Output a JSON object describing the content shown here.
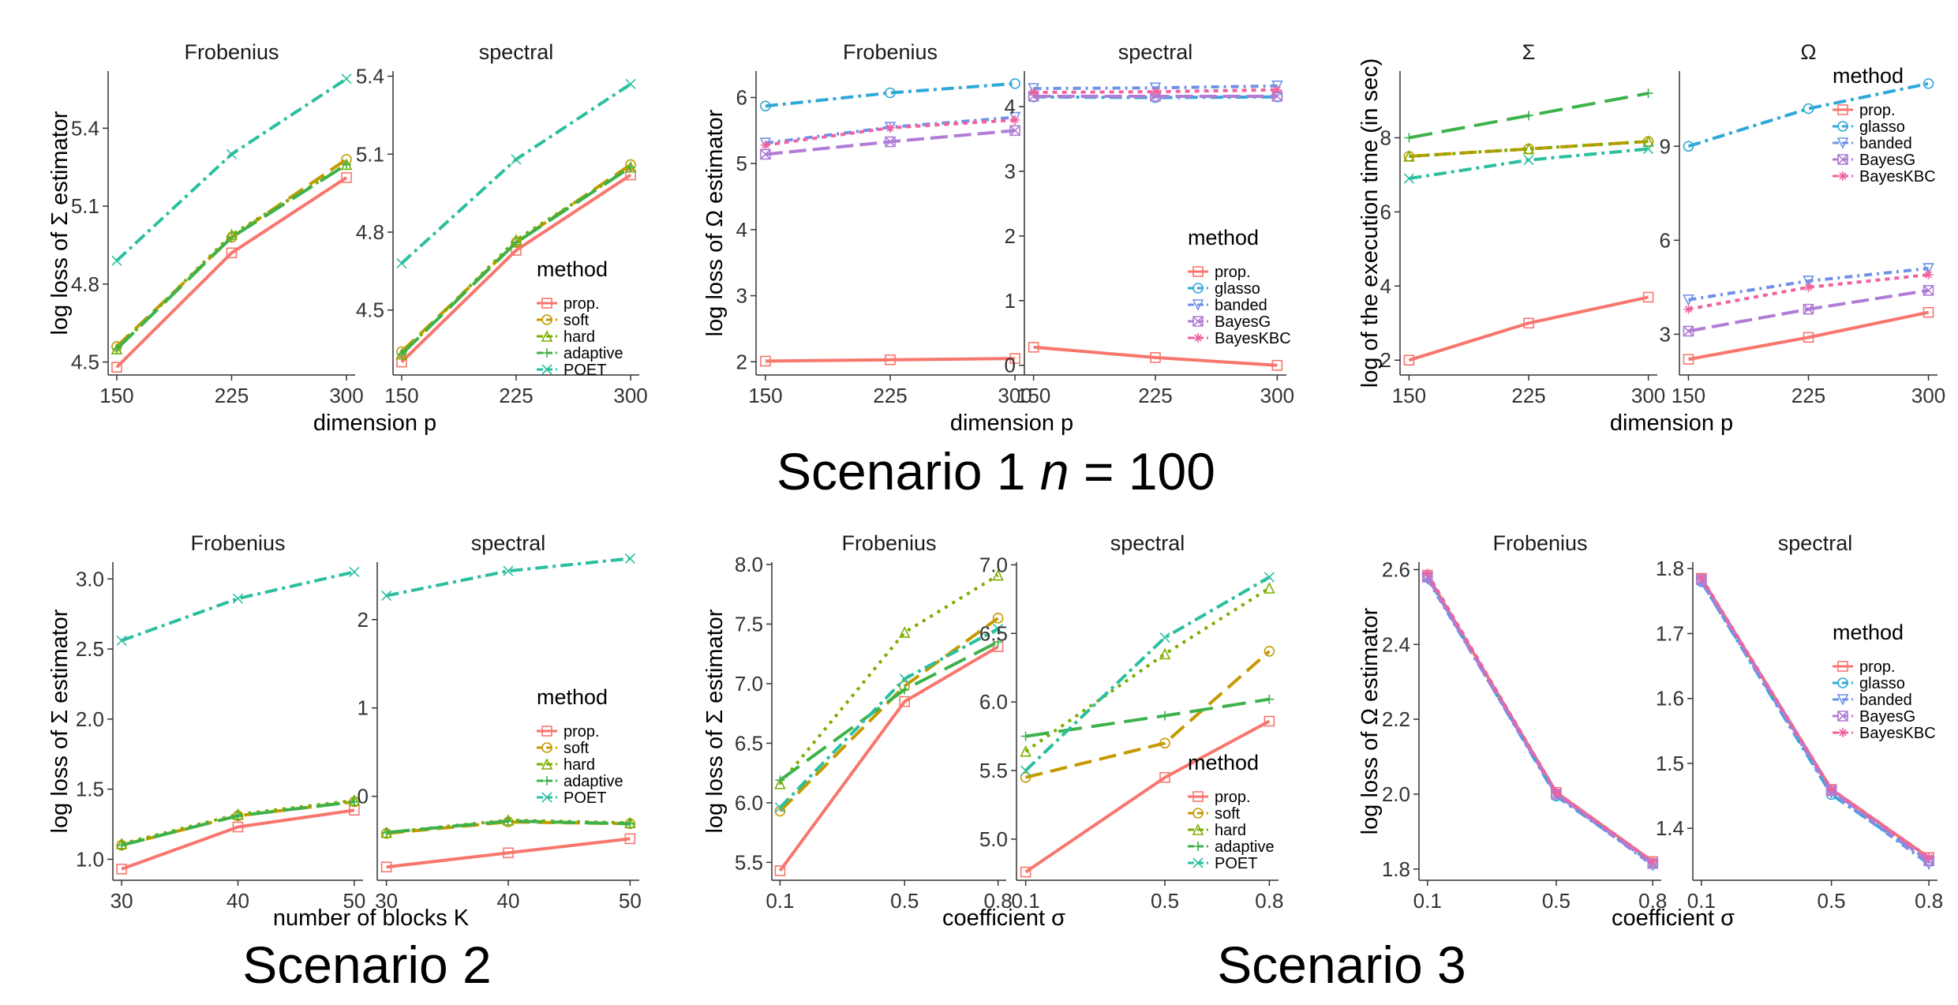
{
  "figure": {
    "scenario_titles": [
      "Scenario 1 ",
      "n",
      " = 100",
      "Scenario 2",
      "Scenario 3"
    ]
  },
  "colors": {
    "prop.": "#F8766D",
    "soft": "#C49A00",
    "hard": "#7CAE00",
    "adaptive": "#3DB24B",
    "POET": "#2BBF9F",
    "glasso": "#2FA8D8",
    "banded": "#6E92E8",
    "BayesG": "#B07CD6",
    "BayesKBC": "#F0629F"
  },
  "chart_data": [
    {
      "id": "s1_sigma",
      "type": "line",
      "group": "Scenario 1",
      "ylabel": "log loss of Σ estimator",
      "xlabel": "dimension p",
      "legend": {
        "title": "method",
        "placement": "right-bottom of spectral panel"
      },
      "panels": [
        {
          "strip": "Frobenius",
          "x": [
            150,
            225,
            300
          ],
          "xticks": [
            "150",
            "225",
            "300"
          ],
          "ylim": [
            4.45,
            5.62
          ],
          "yticks": [
            4.5,
            4.8,
            5.1,
            5.4
          ],
          "ytick_labels": [
            "4.5",
            "4.8",
            "5.1",
            "5.4"
          ],
          "series": [
            {
              "name": "prop.",
              "values": [
                4.48,
                4.92,
                5.21
              ]
            },
            {
              "name": "soft",
              "values": [
                4.56,
                4.98,
                5.28
              ]
            },
            {
              "name": "hard",
              "values": [
                4.55,
                4.99,
                5.26
              ]
            },
            {
              "name": "adaptive",
              "values": [
                4.55,
                4.98,
                5.26
              ]
            },
            {
              "name": "POET",
              "values": [
                4.89,
                5.3,
                5.59
              ]
            }
          ]
        },
        {
          "strip": "spectral",
          "x": [
            150,
            225,
            300
          ],
          "xticks": [
            "150",
            "225",
            "300"
          ],
          "ylim": [
            4.25,
            5.42
          ],
          "yticks": [
            4.5,
            4.8,
            5.1,
            5.4
          ],
          "ytick_labels": [
            "4.5",
            "4.8",
            "5.1",
            "5.4"
          ],
          "series": [
            {
              "name": "prop.",
              "values": [
                4.3,
                4.73,
                5.02
              ]
            },
            {
              "name": "soft",
              "values": [
                4.34,
                4.76,
                5.06
              ]
            },
            {
              "name": "hard",
              "values": [
                4.33,
                4.77,
                5.05
              ]
            },
            {
              "name": "adaptive",
              "values": [
                4.33,
                4.76,
                5.05
              ]
            },
            {
              "name": "POET",
              "values": [
                4.68,
                5.08,
                5.37
              ]
            }
          ]
        }
      ]
    },
    {
      "id": "s1_omega",
      "type": "line",
      "group": "Scenario 1",
      "ylabel": "log loss of Ω estimator",
      "xlabel": "dimension p",
      "legend": {
        "title": "method",
        "placement": "right-middle of spectral panel"
      },
      "panels": [
        {
          "strip": "Frobenius",
          "x": [
            150,
            225,
            300
          ],
          "xticks": [
            "150",
            "225",
            "300"
          ],
          "ylim": [
            1.8,
            6.4
          ],
          "yticks": [
            2,
            3,
            4,
            5,
            6
          ],
          "ytick_labels": [
            "2",
            "3",
            "4",
            "5",
            "6"
          ],
          "series": [
            {
              "name": "prop.",
              "values": [
                2.01,
                2.03,
                2.05
              ]
            },
            {
              "name": "glasso",
              "values": [
                5.87,
                6.07,
                6.21
              ]
            },
            {
              "name": "banded",
              "values": [
                5.31,
                5.55,
                5.7
              ]
            },
            {
              "name": "BayesG",
              "values": [
                5.14,
                5.33,
                5.5
              ]
            },
            {
              "name": "BayesKBC",
              "values": [
                5.28,
                5.54,
                5.66
              ]
            }
          ]
        },
        {
          "strip": "spectral",
          "x": [
            150,
            225,
            300
          ],
          "xticks": [
            "150",
            "225",
            "300"
          ],
          "ylim": [
            -0.15,
            4.55
          ],
          "yticks": [
            0,
            1,
            2,
            3,
            4
          ],
          "ytick_labels": [
            "0",
            "1",
            "2",
            "3",
            "4"
          ],
          "series": [
            {
              "name": "prop.",
              "values": [
                0.28,
                0.12,
                0.0
              ]
            },
            {
              "name": "glasso",
              "values": [
                4.15,
                4.14,
                4.15
              ]
            },
            {
              "name": "banded",
              "values": [
                4.28,
                4.29,
                4.32
              ]
            },
            {
              "name": "BayesG",
              "values": [
                4.16,
                4.16,
                4.16
              ]
            },
            {
              "name": "BayesKBC",
              "values": [
                4.22,
                4.23,
                4.26
              ]
            }
          ]
        }
      ]
    },
    {
      "id": "s1_time",
      "type": "line",
      "group": "Scenario 1",
      "ylabel": "log of the execution time (in sec)",
      "xlabel": "dimension p",
      "legend": {
        "title": "method",
        "placement": "top-right of Ω panel"
      },
      "panels": [
        {
          "strip": "Σ",
          "x": [
            150,
            225,
            300
          ],
          "xticks": [
            "150",
            "225",
            "300"
          ],
          "ylim": [
            1.6,
            9.8
          ],
          "yticks": [
            2,
            4,
            6,
            8
          ],
          "ytick_labels": [
            "2",
            "4",
            "6",
            "8"
          ],
          "series": [
            {
              "name": "prop.",
              "values": [
                2.0,
                3.0,
                3.7
              ]
            },
            {
              "name": "soft",
              "values": [
                7.5,
                7.7,
                7.9
              ]
            },
            {
              "name": "hard",
              "values": [
                7.5,
                7.7,
                7.9
              ]
            },
            {
              "name": "adaptive",
              "values": [
                8.0,
                8.6,
                9.2
              ]
            },
            {
              "name": "POET",
              "values": [
                6.9,
                7.4,
                7.7
              ]
            }
          ]
        },
        {
          "strip": "Ω",
          "x": [
            150,
            225,
            300
          ],
          "xticks": [
            "150",
            "225",
            "300"
          ],
          "ylim": [
            1.7,
            11.4
          ],
          "yticks": [
            3,
            6,
            9
          ],
          "ytick_labels": [
            "3",
            "6",
            "9"
          ],
          "series": [
            {
              "name": "prop.",
              "values": [
                2.2,
                2.9,
                3.7
              ]
            },
            {
              "name": "glasso",
              "values": [
                9.0,
                10.2,
                11.0
              ]
            },
            {
              "name": "banded",
              "values": [
                4.1,
                4.7,
                5.1
              ]
            },
            {
              "name": "BayesG",
              "values": [
                3.1,
                3.8,
                4.4
              ]
            },
            {
              "name": "BayesKBC",
              "values": [
                3.8,
                4.5,
                4.9
              ]
            }
          ]
        }
      ]
    },
    {
      "id": "s2_sigma",
      "type": "line",
      "group": "Scenario 2",
      "ylabel": "log loss of Σ estimator",
      "xlabel": "number of blocks K",
      "legend": {
        "title": "method",
        "placement": "right-middle of spectral panel"
      },
      "panels": [
        {
          "strip": "Frobenius",
          "x": [
            30,
            40,
            50
          ],
          "xticks": [
            "30",
            "40",
            "50"
          ],
          "ylim": [
            0.85,
            3.12
          ],
          "yticks": [
            1.0,
            1.5,
            2.0,
            2.5,
            3.0
          ],
          "ytick_labels": [
            "1.0",
            "1.5",
            "2.0",
            "2.5",
            "3.0"
          ],
          "series": [
            {
              "name": "prop.",
              "values": [
                0.93,
                1.23,
                1.35
              ]
            },
            {
              "name": "soft",
              "values": [
                1.1,
                1.31,
                1.41
              ]
            },
            {
              "name": "hard",
              "values": [
                1.11,
                1.32,
                1.42
              ]
            },
            {
              "name": "adaptive",
              "values": [
                1.1,
                1.31,
                1.41
              ]
            },
            {
              "name": "POET",
              "values": [
                2.56,
                2.86,
                3.05
              ]
            }
          ]
        },
        {
          "strip": "spectral",
          "x": [
            30,
            40,
            50
          ],
          "xticks": [
            "30",
            "40",
            "50"
          ],
          "ylim": [
            -0.95,
            2.65
          ],
          "yticks": [
            0,
            1,
            2
          ],
          "ytick_labels": [
            "0",
            "1",
            "2"
          ],
          "series": [
            {
              "name": "prop.",
              "values": [
                -0.8,
                -0.64,
                -0.48
              ]
            },
            {
              "name": "soft",
              "values": [
                -0.42,
                -0.29,
                -0.31
              ]
            },
            {
              "name": "hard",
              "values": [
                -0.41,
                -0.27,
                -0.3
              ]
            },
            {
              "name": "adaptive",
              "values": [
                -0.41,
                -0.28,
                -0.31
              ]
            },
            {
              "name": "POET",
              "values": [
                2.27,
                2.55,
                2.69
              ]
            }
          ]
        }
      ]
    },
    {
      "id": "s3_sigma",
      "type": "line",
      "group": "Scenario 3",
      "ylabel": "log loss of Σ estimator",
      "xlabel": "coefficient σ",
      "legend": {
        "title": "method",
        "placement": "right-bottom of spectral panel"
      },
      "panels": [
        {
          "strip": "Frobenius",
          "x": [
            0.1,
            0.5,
            0.8
          ],
          "xticks": [
            "0.1",
            "0.5",
            "0.8"
          ],
          "ylim": [
            5.35,
            8.02
          ],
          "yticks": [
            5.5,
            6.0,
            6.5,
            7.0,
            7.5,
            8.0
          ],
          "ytick_labels": [
            "5.5",
            "6.0",
            "6.5",
            "7.0",
            "7.5",
            "8.0"
          ],
          "series": [
            {
              "name": "prop.",
              "values": [
                5.43,
                6.85,
                7.31
              ]
            },
            {
              "name": "soft",
              "values": [
                5.93,
                6.98,
                7.55
              ]
            },
            {
              "name": "hard",
              "values": [
                6.16,
                7.43,
                7.91
              ]
            },
            {
              "name": "adaptive",
              "values": [
                6.19,
                6.95,
                7.35
              ]
            },
            {
              "name": "POET",
              "values": [
                5.96,
                7.04,
                7.46
              ]
            }
          ]
        },
        {
          "strip": "spectral",
          "x": [
            0.1,
            0.5,
            0.8
          ],
          "xticks": [
            "0.1",
            "0.5",
            "0.8"
          ],
          "ylim": [
            4.7,
            7.02
          ],
          "yticks": [
            5.0,
            5.5,
            6.0,
            6.5,
            7.0
          ],
          "ytick_labels": [
            "5.0",
            "5.5",
            "6.0",
            "6.5",
            "7.0"
          ],
          "series": [
            {
              "name": "prop.",
              "values": [
                4.76,
                5.45,
                5.86
              ]
            },
            {
              "name": "soft",
              "values": [
                5.45,
                5.7,
                6.37
              ]
            },
            {
              "name": "hard",
              "values": [
                5.64,
                6.35,
                6.83
              ]
            },
            {
              "name": "adaptive",
              "values": [
                5.75,
                5.9,
                6.02
              ]
            },
            {
              "name": "POET",
              "values": [
                5.5,
                6.47,
                6.91
              ]
            }
          ]
        }
      ]
    },
    {
      "id": "s3_omega",
      "type": "line",
      "group": "Scenario 3",
      "ylabel": "log loss of Ω estimator",
      "xlabel": "coefficient σ",
      "legend": {
        "title": "method",
        "placement": "right-middle of spectral panel"
      },
      "panels": [
        {
          "strip": "Frobenius",
          "x": [
            0.1,
            0.5,
            0.8
          ],
          "xticks": [
            "0.1",
            "0.5",
            "0.8"
          ],
          "ylim": [
            1.77,
            2.62
          ],
          "yticks": [
            1.8,
            2.0,
            2.2,
            2.4,
            2.6
          ],
          "ytick_labels": [
            "1.8",
            "2.0",
            "2.2",
            "2.4",
            "2.6"
          ],
          "series": [
            {
              "name": "prop.",
              "values": [
                2.585,
                2.005,
                1.82
              ]
            },
            {
              "name": "glasso",
              "values": [
                2.58,
                1.995,
                1.815
              ]
            },
            {
              "name": "banded",
              "values": [
                2.575,
                2.0,
                1.81
              ]
            },
            {
              "name": "BayesG",
              "values": [
                2.58,
                2.0,
                1.815
              ]
            },
            {
              "name": "BayesKBC",
              "values": [
                2.59,
                2.005,
                1.82
              ]
            }
          ]
        },
        {
          "strip": "spectral",
          "x": [
            0.1,
            0.5,
            0.8
          ],
          "xticks": [
            "0.1",
            "0.5",
            "0.8"
          ],
          "ylim": [
            1.32,
            1.81
          ],
          "yticks": [
            1.4,
            1.5,
            1.6,
            1.7,
            1.8
          ],
          "ytick_labels": [
            "1.4",
            "1.5",
            "1.6",
            "1.7",
            "1.8"
          ],
          "series": [
            {
              "name": "prop.",
              "values": [
                1.785,
                1.46,
                1.355
              ]
            },
            {
              "name": "glasso",
              "values": [
                1.78,
                1.452,
                1.35
              ]
            },
            {
              "name": "banded",
              "values": [
                1.78,
                1.455,
                1.345
              ]
            },
            {
              "name": "BayesG",
              "values": [
                1.783,
                1.458,
                1.35
              ]
            },
            {
              "name": "BayesKBC",
              "values": [
                1.786,
                1.46,
                1.355
              ]
            }
          ]
        }
      ]
    }
  ]
}
